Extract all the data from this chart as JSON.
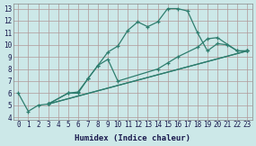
{
  "xlabel": "Humidex (Indice chaleur)",
  "ylabel": "",
  "bg_color": "#cce8e8",
  "grid_color": "#b09898",
  "line_color": "#2e7d6e",
  "xlim": [
    -0.5,
    23.5
  ],
  "ylim": [
    3.8,
    13.4
  ],
  "xticks": [
    0,
    1,
    2,
    3,
    4,
    5,
    6,
    7,
    8,
    9,
    10,
    11,
    12,
    13,
    14,
    15,
    16,
    17,
    18,
    19,
    20,
    21,
    22,
    23
  ],
  "yticks": [
    4,
    5,
    6,
    7,
    8,
    9,
    10,
    11,
    12,
    13
  ],
  "lines": [
    {
      "x": [
        0,
        1,
        2,
        3,
        3,
        5,
        6,
        7,
        8,
        9,
        10,
        11,
        12,
        13,
        14,
        15,
        16,
        17,
        18,
        19,
        20,
        21,
        22,
        23
      ],
      "y": [
        6,
        4.5,
        5,
        5.1,
        5.1,
        6.0,
        6.0,
        7.2,
        8.3,
        9.4,
        9.9,
        11.2,
        11.9,
        11.5,
        11.9,
        13.0,
        13.0,
        12.8,
        11.0,
        9.5,
        10.1,
        10.0,
        9.5,
        9.5
      ]
    },
    {
      "x": [
        3,
        5,
        6,
        7,
        8,
        9,
        10,
        14,
        15,
        16,
        18,
        19,
        20,
        22,
        23
      ],
      "y": [
        5.1,
        6.0,
        6.1,
        7.2,
        8.3,
        8.8,
        7.0,
        8.0,
        8.5,
        9.0,
        9.8,
        10.5,
        10.6,
        9.5,
        9.5
      ]
    },
    {
      "x": [
        3,
        23
      ],
      "y": [
        5.1,
        9.5
      ]
    },
    {
      "x": [
        3,
        23
      ],
      "y": [
        5.1,
        9.5
      ]
    }
  ]
}
